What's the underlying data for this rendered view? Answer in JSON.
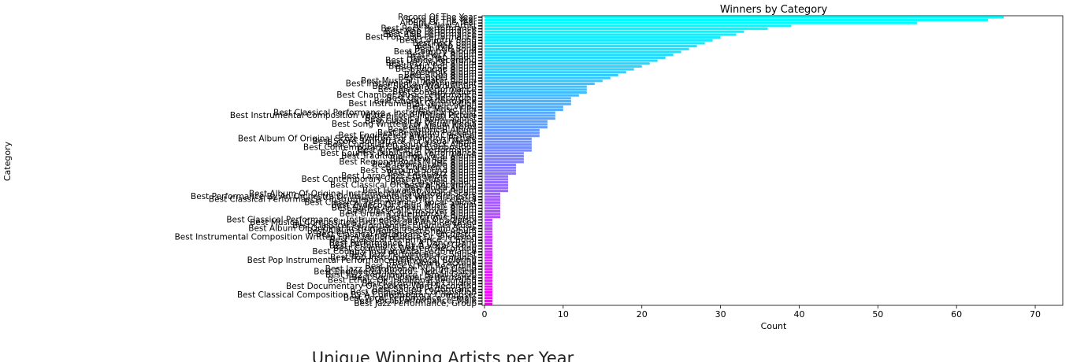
{
  "chart_data": [
    {
      "type": "barh",
      "title": "Winners by Category",
      "xlabel": "Count",
      "ylabel": "Category",
      "palette": [
        "#00ffff",
        "#ff00ff"
      ],
      "xlim": [
        -0.3,
        73.5
      ],
      "xticks": [
        0,
        10,
        20,
        30,
        40,
        50,
        60,
        70
      ],
      "categories": [
        "Record Of The Year",
        "Song Of The Year",
        "Album Of The Year",
        "Best New Artist",
        "Best Rock Performance",
        "Best Rap Performance",
        "Best R&B Performance",
        "Best Pop Solo Performance",
        "Best Country Song",
        "Best Rock Song",
        "Best Rap Song",
        "Best R&B Song",
        "Best Country Album",
        "Best Rock Album",
        "Best Rap Album",
        "Best Dance Recording",
        "Best Jazz Vocal Album",
        "Best Latin Pop Album",
        "Best Reggae Album",
        "Best Folk Album",
        "Best Blues Album",
        "Best Gospel Album",
        "Best Musical Theater Album",
        "Best Instrumental Arrangement",
        "Best Spoken Word Album",
        "Best Metal Performance",
        "Best Comedy Album",
        "Best Chamber Music Performance",
        "Best Opera Recording",
        "Best Choral Performance",
        "Best Instrumental Composition",
        "Best Music Video",
        "Best Music Film",
        "Best Classical Performance - Instrumental Soloist",
        "Best Instrumental Composition Written For A Motion Picture",
        "Best Classical Vocal Soloist",
        "Best Classical Performance",
        "Best Song Written For Visual Media",
        "Best Album Notes",
        "Best Historical Album",
        "Best Recording Package",
        "Best Engineered Album, Classical",
        "Best Album Of Original Score Written For A Motion Picture",
        "Best Score Soundtrack For Visual Media",
        "Best Compilation Soundtrack Album",
        "Best Contemporary Classical Composition",
        "Best Orchestral Performance",
        "Best Country Duo/Group Performance",
        "Best Traditional Pop Vocal Album",
        "Best New Age Album",
        "Best Regional Roots Music Album",
        "Best Tropical Latin Album",
        "Best Children's Album",
        "Best Surround Sound Album",
        "Best Latin Jazz Album",
        "Best Large Jazz Ensemble Album",
        "Best Contemporary Christian Music Album",
        "Best Classical Album",
        "Best Classical Orchestral Recording",
        "Best Polka Album",
        "Best Hawaiian Music Album",
        "Best Album Of Original Instrumental Background Score",
        "Best Performance By An Orchestra Or Instrumentalist With Orchestra",
        "Best Classical Performance - Instrumental Soloist With Orchestra",
        "Best Classical Performance - Vocal Soloist",
        "Best Zydeco Or Cajun Music Album",
        "Best Native American Music Album",
        "Best Classical Crossover Album",
        "Best Urban Contemporary Album",
        "Best Electronic Album",
        "Best Classical Performance - Instrumental Soloist Or Soloists",
        "Best Musical Composition First Recorded And Released",
        "Best Classical Performance - Chamber Music",
        "Best Album Or Original Instrumental Background Score",
        "Best Album Of Original Cast Show Album",
        "Best Classical Performance - Orchestra",
        "Best Instrumental Composition Written For A Motion Picture Or Television",
        "Best Classical Performance - Choral",
        "Best Performance By A Dance Band",
        "Best Performance By A Vocal Group",
        "Best Country & Western Recording",
        "Best Country Instrumental Performance",
        "Best Jazz Performance - Soloist",
        "Best Pop Instrumental Performance",
        "Best Pop Instrumental Performance With Vocal Coloring",
        "Best Album Package",
        "Best Rock & Roll Recording",
        "Best Jazz Performance - Large Group",
        "Best Engineered Record - Non-Classical",
        "Best Jazz Performance - Small Group",
        "Best Soul Gospel Performance",
        "Best Ethnic Or Traditional Recording",
        "Best Recording For Children",
        "Best Documentary Or Spoken Word Recording",
        "Best Sacred Performance",
        "Best Original Jazz Composition",
        "Best Classical Composition By A Contemporary Composer",
        "Best Vocal Performance, Female",
        "Best Vocal Performance, Male",
        "Best Jazz Performance, Group"
      ],
      "values": [
        66,
        64,
        55,
        39,
        36,
        33,
        32,
        30,
        29,
        28,
        27,
        26,
        25,
        24,
        23,
        22,
        21,
        20,
        19,
        18,
        17,
        16,
        15,
        14,
        13,
        13,
        13,
        12,
        11,
        11,
        11,
        10,
        10,
        9,
        9,
        9,
        8,
        8,
        8,
        7,
        7,
        7,
        6,
        6,
        6,
        6,
        6,
        5,
        5,
        5,
        5,
        4,
        4,
        4,
        4,
        3,
        3,
        3,
        3,
        3,
        3,
        2,
        2,
        2,
        2,
        2,
        2,
        2,
        2,
        2,
        1,
        1,
        1,
        1,
        1,
        1,
        1,
        1,
        1,
        1,
        1,
        1,
        1,
        1,
        1,
        1,
        1,
        1,
        1,
        1,
        1,
        1,
        1,
        1,
        1,
        1,
        1,
        1,
        1,
        1
      ]
    },
    {
      "type": "line",
      "title": "Unique Winning Artists per Year"
    }
  ]
}
